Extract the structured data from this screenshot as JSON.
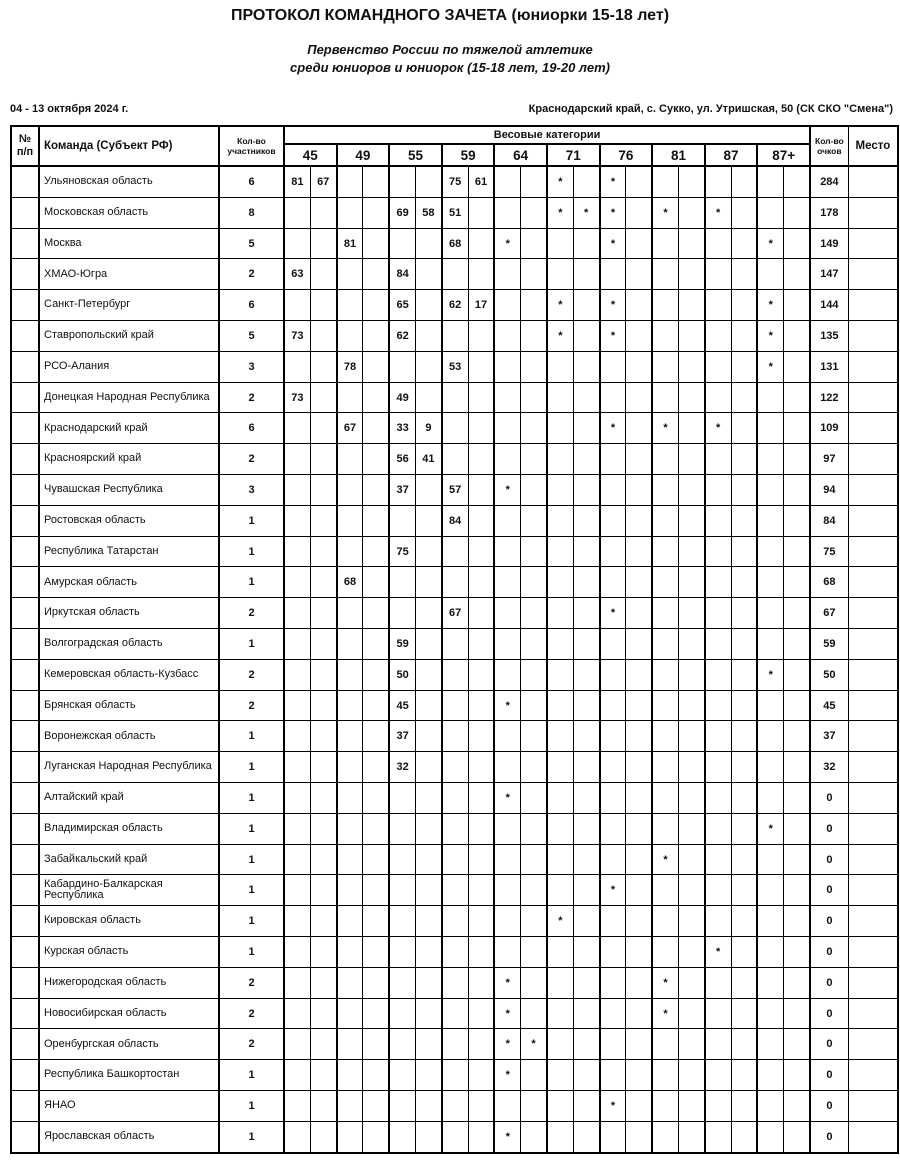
{
  "header": {
    "title": "ПРОТОКОЛ КОМАНДНОГО ЗАЧЕТА (юниорки 15-18 лет)",
    "subtitle_line1": "Первенство России по тяжелой атлетике",
    "subtitle_line2": "среди юниоров и юниорок (15-18 лет, 19-20 лет)",
    "date_range": "04 - 13 октября 2024 г.",
    "venue": "Краснодарский край, с. Сукко, ул. Утришская, 50 (СК СКО \"Смена\")"
  },
  "table": {
    "header": {
      "num_line1": "№",
      "num_line2": "п/п",
      "team": "Команда (Субъект РФ)",
      "participants_line1": "Кол-во",
      "participants_line2": "участников",
      "weight_group": "Весовые категории",
      "categories": [
        "45",
        "49",
        "55",
        "59",
        "64",
        "71",
        "76",
        "81",
        "87",
        "87+"
      ],
      "points_line1": "Кол-во",
      "points_line2": "очков",
      "place": "Место"
    },
    "rows": [
      {
        "name": "Ульяновская область",
        "participants": "6",
        "cells": [
          "81",
          "67",
          "",
          "",
          "",
          "",
          "75",
          "61",
          "",
          "",
          "*",
          "",
          "*",
          "",
          "",
          "",
          "",
          "",
          "",
          ""
        ],
        "points": "284"
      },
      {
        "name": "Московская область",
        "participants": "8",
        "cells": [
          "",
          "",
          "",
          "",
          "69",
          "58",
          "51",
          "",
          "",
          "",
          "*",
          "*",
          "*",
          "",
          "*",
          "",
          "*",
          "",
          "",
          ""
        ],
        "points": "178"
      },
      {
        "name": "Москва",
        "participants": "5",
        "cells": [
          "",
          "",
          "81",
          "",
          "",
          "",
          "68",
          "",
          "*",
          "",
          "",
          "",
          "*",
          "",
          "",
          "",
          "",
          "",
          "*",
          ""
        ],
        "points": "149"
      },
      {
        "name": "ХМАО-Югра",
        "participants": "2",
        "cells": [
          "63",
          "",
          "",
          "",
          "84",
          "",
          "",
          "",
          "",
          "",
          "",
          "",
          "",
          "",
          "",
          "",
          "",
          "",
          "",
          ""
        ],
        "points": "147"
      },
      {
        "name": "Санкт-Петербург",
        "participants": "6",
        "cells": [
          "",
          "",
          "",
          "",
          "65",
          "",
          "62",
          "17",
          "",
          "",
          "*",
          "",
          "*",
          "",
          "",
          "",
          "",
          "",
          "*",
          ""
        ],
        "points": "144"
      },
      {
        "name": "Ставропольский край",
        "participants": "5",
        "cells": [
          "73",
          "",
          "",
          "",
          "62",
          "",
          "",
          "",
          "",
          "",
          "*",
          "",
          "*",
          "",
          "",
          "",
          "",
          "",
          "*",
          ""
        ],
        "points": "135"
      },
      {
        "name": "РСО-Алания",
        "participants": "3",
        "cells": [
          "",
          "",
          "78",
          "",
          "",
          "",
          "53",
          "",
          "",
          "",
          "",
          "",
          "",
          "",
          "",
          "",
          "",
          "",
          "*",
          ""
        ],
        "points": "131"
      },
      {
        "name": "Донецкая Народная Республика",
        "participants": "2",
        "cells": [
          "73",
          "",
          "",
          "",
          "49",
          "",
          "",
          "",
          "",
          "",
          "",
          "",
          "",
          "",
          "",
          "",
          "",
          "",
          "",
          ""
        ],
        "points": "122"
      },
      {
        "name": "Краснодарский край",
        "participants": "6",
        "cells": [
          "",
          "",
          "67",
          "",
          "33",
          "9",
          "",
          "",
          "",
          "",
          "",
          "",
          "*",
          "",
          "*",
          "",
          "*",
          "",
          "",
          ""
        ],
        "points": "109"
      },
      {
        "name": "Красноярский край",
        "participants": "2",
        "cells": [
          "",
          "",
          "",
          "",
          "56",
          "41",
          "",
          "",
          "",
          "",
          "",
          "",
          "",
          "",
          "",
          "",
          "",
          "",
          "",
          ""
        ],
        "points": "97"
      },
      {
        "name": "Чувашская Республика",
        "participants": "3",
        "cells": [
          "",
          "",
          "",
          "",
          "37",
          "",
          "57",
          "",
          "*",
          "",
          "",
          "",
          "",
          "",
          "",
          "",
          "",
          "",
          "",
          ""
        ],
        "points": "94"
      },
      {
        "name": "Ростовская область",
        "participants": "1",
        "cells": [
          "",
          "",
          "",
          "",
          "",
          "",
          "84",
          "",
          "",
          "",
          "",
          "",
          "",
          "",
          "",
          "",
          "",
          "",
          "",
          ""
        ],
        "points": "84"
      },
      {
        "name": "Республика Татарстан",
        "participants": "1",
        "cells": [
          "",
          "",
          "",
          "",
          "75",
          "",
          "",
          "",
          "",
          "",
          "",
          "",
          "",
          "",
          "",
          "",
          "",
          "",
          "",
          ""
        ],
        "points": "75"
      },
      {
        "name": "Амурская область",
        "participants": "1",
        "cells": [
          "",
          "",
          "68",
          "",
          "",
          "",
          "",
          "",
          "",
          "",
          "",
          "",
          "",
          "",
          "",
          "",
          "",
          "",
          "",
          ""
        ],
        "points": "68"
      },
      {
        "name": "Иркутская область",
        "participants": "2",
        "cells": [
          "",
          "",
          "",
          "",
          "",
          "",
          "67",
          "",
          "",
          "",
          "",
          "",
          "*",
          "",
          "",
          "",
          "",
          "",
          "",
          ""
        ],
        "points": "67"
      },
      {
        "name": "Волгоградская область",
        "participants": "1",
        "cells": [
          "",
          "",
          "",
          "",
          "59",
          "",
          "",
          "",
          "",
          "",
          "",
          "",
          "",
          "",
          "",
          "",
          "",
          "",
          "",
          ""
        ],
        "points": "59"
      },
      {
        "name": "Кемеровская область-Кузбасс",
        "participants": "2",
        "cells": [
          "",
          "",
          "",
          "",
          "50",
          "",
          "",
          "",
          "",
          "",
          "",
          "",
          "",
          "",
          "",
          "",
          "",
          "",
          "*",
          ""
        ],
        "points": "50"
      },
      {
        "name": "Брянская область",
        "participants": "2",
        "cells": [
          "",
          "",
          "",
          "",
          "45",
          "",
          "",
          "",
          "*",
          "",
          "",
          "",
          "",
          "",
          "",
          "",
          "",
          "",
          "",
          ""
        ],
        "points": "45"
      },
      {
        "name": "Воронежская область",
        "participants": "1",
        "cells": [
          "",
          "",
          "",
          "",
          "37",
          "",
          "",
          "",
          "",
          "",
          "",
          "",
          "",
          "",
          "",
          "",
          "",
          "",
          "",
          ""
        ],
        "points": "37"
      },
      {
        "name": "Луганская Народная Республика",
        "participants": "1",
        "cells": [
          "",
          "",
          "",
          "",
          "32",
          "",
          "",
          "",
          "",
          "",
          "",
          "",
          "",
          "",
          "",
          "",
          "",
          "",
          "",
          ""
        ],
        "points": "32"
      },
      {
        "name": "Алтайский край",
        "participants": "1",
        "cells": [
          "",
          "",
          "",
          "",
          "",
          "",
          "",
          "",
          "*",
          "",
          "",
          "",
          "",
          "",
          "",
          "",
          "",
          "",
          "",
          ""
        ],
        "points": "0"
      },
      {
        "name": "Владимирская область",
        "participants": "1",
        "cells": [
          "",
          "",
          "",
          "",
          "",
          "",
          "",
          "",
          "",
          "",
          "",
          "",
          "",
          "",
          "",
          "",
          "",
          "",
          "*",
          ""
        ],
        "points": "0"
      },
      {
        "name": "Забайкальский край",
        "participants": "1",
        "cells": [
          "",
          "",
          "",
          "",
          "",
          "",
          "",
          "",
          "",
          "",
          "",
          "",
          "",
          "",
          "*",
          "",
          "",
          "",
          "",
          ""
        ],
        "points": "0"
      },
      {
        "name": "Кабардино-Балкарская Республика",
        "participants": "1",
        "cells": [
          "",
          "",
          "",
          "",
          "",
          "",
          "",
          "",
          "",
          "",
          "",
          "",
          "*",
          "",
          "",
          "",
          "",
          "",
          "",
          ""
        ],
        "points": "0"
      },
      {
        "name": "Кировская область",
        "participants": "1",
        "cells": [
          "",
          "",
          "",
          "",
          "",
          "",
          "",
          "",
          "",
          "",
          "*",
          "",
          "",
          "",
          "",
          "",
          "",
          "",
          "",
          ""
        ],
        "points": "0"
      },
      {
        "name": "Курская область",
        "participants": "1",
        "cells": [
          "",
          "",
          "",
          "",
          "",
          "",
          "",
          "",
          "",
          "",
          "",
          "",
          "",
          "",
          "",
          "",
          "*",
          "",
          "",
          ""
        ],
        "points": "0"
      },
      {
        "name": "Нижегородская область",
        "participants": "2",
        "cells": [
          "",
          "",
          "",
          "",
          "",
          "",
          "",
          "",
          "*",
          "",
          "",
          "",
          "",
          "",
          "*",
          "",
          "",
          "",
          "",
          ""
        ],
        "points": "0"
      },
      {
        "name": "Новосибирская область",
        "participants": "2",
        "cells": [
          "",
          "",
          "",
          "",
          "",
          "",
          "",
          "",
          "*",
          "",
          "",
          "",
          "",
          "",
          "*",
          "",
          "",
          "",
          "",
          ""
        ],
        "points": "0"
      },
      {
        "name": "Оренбургская область",
        "participants": "2",
        "cells": [
          "",
          "",
          "",
          "",
          "",
          "",
          "",
          "",
          "*",
          "*",
          "",
          "",
          "",
          "",
          "",
          "",
          "",
          "",
          "",
          ""
        ],
        "points": "0"
      },
      {
        "name": "Республика Башкортостан",
        "participants": "1",
        "cells": [
          "",
          "",
          "",
          "",
          "",
          "",
          "",
          "",
          "*",
          "",
          "",
          "",
          "",
          "",
          "",
          "",
          "",
          "",
          "",
          ""
        ],
        "points": "0"
      },
      {
        "name": "ЯНАО",
        "participants": "1",
        "cells": [
          "",
          "",
          "",
          "",
          "",
          "",
          "",
          "",
          "",
          "",
          "",
          "",
          "*",
          "",
          "",
          "",
          "",
          "",
          "",
          ""
        ],
        "points": "0"
      },
      {
        "name": "Ярославская область",
        "participants": "1",
        "cells": [
          "",
          "",
          "",
          "",
          "",
          "",
          "",
          "",
          "*",
          "",
          "",
          "",
          "",
          "",
          "",
          "",
          "",
          "",
          "",
          ""
        ],
        "points": "0"
      }
    ]
  }
}
